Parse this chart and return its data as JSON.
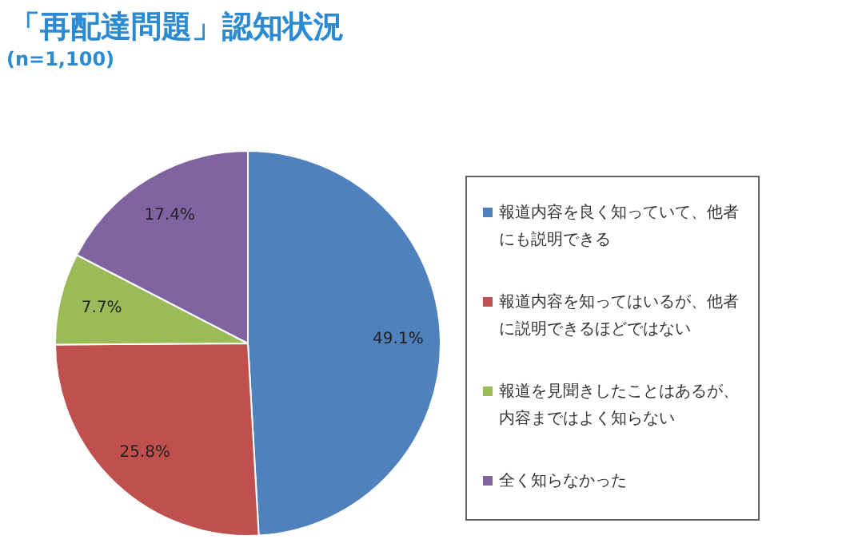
{
  "chart_data": {
    "type": "pie",
    "title": "「再配達問題」認知状況",
    "subtitle": "(n=1,100)",
    "categories": [
      "報道内容を良く知っていて、他者にも説明できる",
      "報道内容を知ってはいるが、他者に説明できるほどではない",
      "報道を見聞きしたことはあるが、内容まではよく知らない",
      "全く知らなかった"
    ],
    "values": [
      49.1,
      25.8,
      7.7,
      17.4
    ],
    "value_labels": [
      "49.1%",
      "25.8%",
      "7.7%",
      "17.4%"
    ],
    "colors": [
      "#4f81bd",
      "#c0504d",
      "#9bbb59",
      "#8064a2"
    ],
    "legend": "right"
  }
}
